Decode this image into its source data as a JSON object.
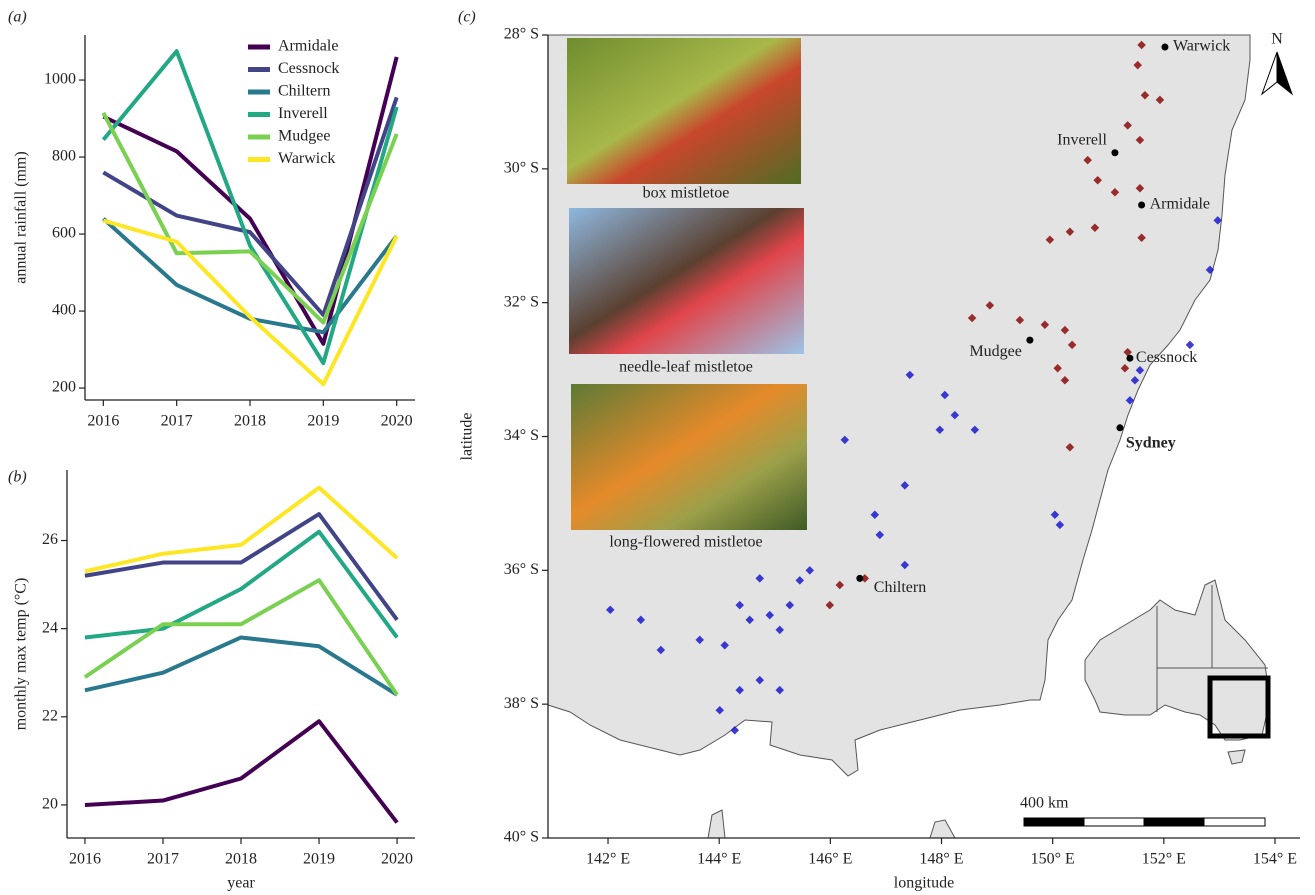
{
  "chart_data": [
    {
      "type": "line",
      "panel_label": "(a)",
      "ylabel": "annual rainfall (mm)",
      "legend": "upper right",
      "x": [
        2016,
        2017,
        2018,
        2019,
        2020
      ],
      "xlim": [
        2015.75,
        2020.25
      ],
      "xticks": [
        2016,
        2017,
        2018,
        2019,
        2020
      ],
      "ylim": [
        169,
        1117
      ],
      "yticks": [
        200,
        400,
        600,
        800,
        1000
      ],
      "series": [
        {
          "name": "Armidale",
          "color": "#440154",
          "values": [
            905,
            815,
            640,
            315,
            1060
          ]
        },
        {
          "name": "Cessnock",
          "color": "#414487",
          "values": [
            760,
            648,
            605,
            390,
            955
          ]
        },
        {
          "name": "Chiltern",
          "color": "#2a788e",
          "values": [
            640,
            468,
            380,
            345,
            595
          ]
        },
        {
          "name": "Inverell",
          "color": "#22a884",
          "values": [
            845,
            1075,
            570,
            265,
            930
          ]
        },
        {
          "name": "Mudgee",
          "color": "#7ad151",
          "values": [
            915,
            550,
            555,
            370,
            860
          ]
        },
        {
          "name": "Warwick",
          "color": "#fde725",
          "values": [
            635,
            580,
            385,
            210,
            595
          ]
        }
      ]
    },
    {
      "type": "line",
      "panel_label": "(b)",
      "ylabel": "monthly max temp (°C)",
      "xlabel": "year",
      "x": [
        2016,
        2017,
        2018,
        2019,
        2020
      ],
      "xlim": [
        2015.77,
        2020.23
      ],
      "xticks": [
        2016,
        2017,
        2018,
        2019,
        2020
      ],
      "ylim": [
        19.25,
        27.6
      ],
      "yticks": [
        20,
        22,
        24,
        26
      ],
      "series": [
        {
          "color": "#440154",
          "values": [
            20.0,
            20.1,
            20.6,
            21.9,
            19.6
          ]
        },
        {
          "color": "#414487",
          "values": [
            25.2,
            25.5,
            25.5,
            26.6,
            24.2
          ]
        },
        {
          "color": "#2a788e",
          "values": [
            22.6,
            23.0,
            23.8,
            23.6,
            22.5
          ]
        },
        {
          "color": "#22a884",
          "values": [
            23.8,
            24.0,
            24.9,
            26.2,
            23.8
          ]
        },
        {
          "color": "#7ad151",
          "values": [
            22.9,
            24.1,
            24.1,
            25.1,
            22.5
          ]
        },
        {
          "color": "#fde725",
          "values": [
            25.3,
            25.7,
            25.9,
            27.2,
            25.6
          ]
        }
      ]
    },
    {
      "type": "map",
      "panel_label": "(c)",
      "xlabel": "longitude",
      "ylabel": "latitude",
      "xlim": [
        140.92,
        154.45
      ],
      "ylim": [
        -40,
        -28
      ],
      "xticks": [
        {
          "value": 142,
          "label": "142° E"
        },
        {
          "value": 144,
          "label": "144° E"
        },
        {
          "value": 146,
          "label": "146° E"
        },
        {
          "value": 148,
          "label": "148° E"
        },
        {
          "value": 150,
          "label": "150° E"
        },
        {
          "value": 152,
          "label": "152° E"
        },
        {
          "value": 154,
          "label": "154° E"
        }
      ],
      "yticks": [
        {
          "value": -28,
          "label": "28° S"
        },
        {
          "value": -30,
          "label": "30° S"
        },
        {
          "value": -32,
          "label": "32° S"
        },
        {
          "value": -34,
          "label": "34° S"
        },
        {
          "value": -36,
          "label": "36° S"
        },
        {
          "value": -38,
          "label": "38° S"
        },
        {
          "value": -40,
          "label": "40° S"
        }
      ],
      "series": [
        {
          "color": "#8b0a0a",
          "x": [
            151.6,
            151.53,
            151.66,
            151.35,
            151.57,
            150.63,
            150.81,
            151.12,
            151.57,
            151.6,
            149.95,
            150.31,
            150.76,
            148.55,
            148.87,
            149.41,
            149.86,
            150.22,
            150.35,
            150.09,
            150.22,
            151.35,
            151.3,
            150.31,
            151.93,
            146.17,
            145.99,
            146.62
          ],
          "y": [
            -28.15,
            -28.45,
            -28.9,
            -29.35,
            -29.57,
            -29.87,
            -30.17,
            -30.35,
            -30.29,
            -31.03,
            -31.06,
            -30.94,
            -30.88,
            -32.23,
            -32.04,
            -32.26,
            -32.33,
            -32.41,
            -32.63,
            -32.98,
            -33.16,
            -32.74,
            -32.98,
            -34.16,
            -28.97,
            -36.22,
            -36.52,
            -36.12
          ]
        },
        {
          "color": "#1a1acd",
          "x": [
            152.97,
            152.83,
            152.47,
            151.48,
            151.39,
            151.57,
            147.43,
            148.06,
            148.24,
            147.97,
            148.6,
            150.04,
            150.13,
            147.34,
            146.8,
            146.89,
            147.34,
            145.63,
            144.73,
            145.45,
            146.26,
            142.04,
            142.59,
            142.95,
            143.65,
            144.37,
            144.55,
            144.91,
            145.27,
            145.09,
            144.73,
            144.37,
            145.09,
            144.01,
            144.28,
            144.1
          ],
          "y": [
            -30.77,
            -31.51,
            -32.63,
            -33.16,
            -33.46,
            -33.01,
            -33.08,
            -33.38,
            -33.68,
            -33.9,
            -33.9,
            -35.17,
            -35.32,
            -34.73,
            -35.17,
            -35.47,
            -35.92,
            -36.0,
            -36.12,
            -36.15,
            -34.05,
            -36.59,
            -36.74,
            -37.19,
            -37.04,
            -36.52,
            -36.74,
            -36.67,
            -36.52,
            -36.89,
            -37.64,
            -37.79,
            -37.79,
            -38.09,
            -38.39,
            -37.12
          ]
        }
      ],
      "towns": {
        "labels": [
          "Warwick",
          "Inverell",
          "Armidale",
          "Mudgee",
          "Cessnock",
          "Sydney",
          "Chiltern"
        ],
        "x": [
          152.02,
          151.12,
          151.6,
          149.59,
          151.39,
          151.21,
          146.53
        ],
        "y": [
          -28.18,
          -29.76,
          -30.54,
          -32.56,
          -32.83,
          -33.87,
          -36.12
        ],
        "bold": [
          false,
          false,
          false,
          false,
          false,
          true,
          false
        ]
      },
      "photos": [
        "box mistletoe",
        "needle-leaf mistletoe",
        "long-flowered mistletoe"
      ],
      "scale_bar": "400 km",
      "north": "N"
    }
  ]
}
